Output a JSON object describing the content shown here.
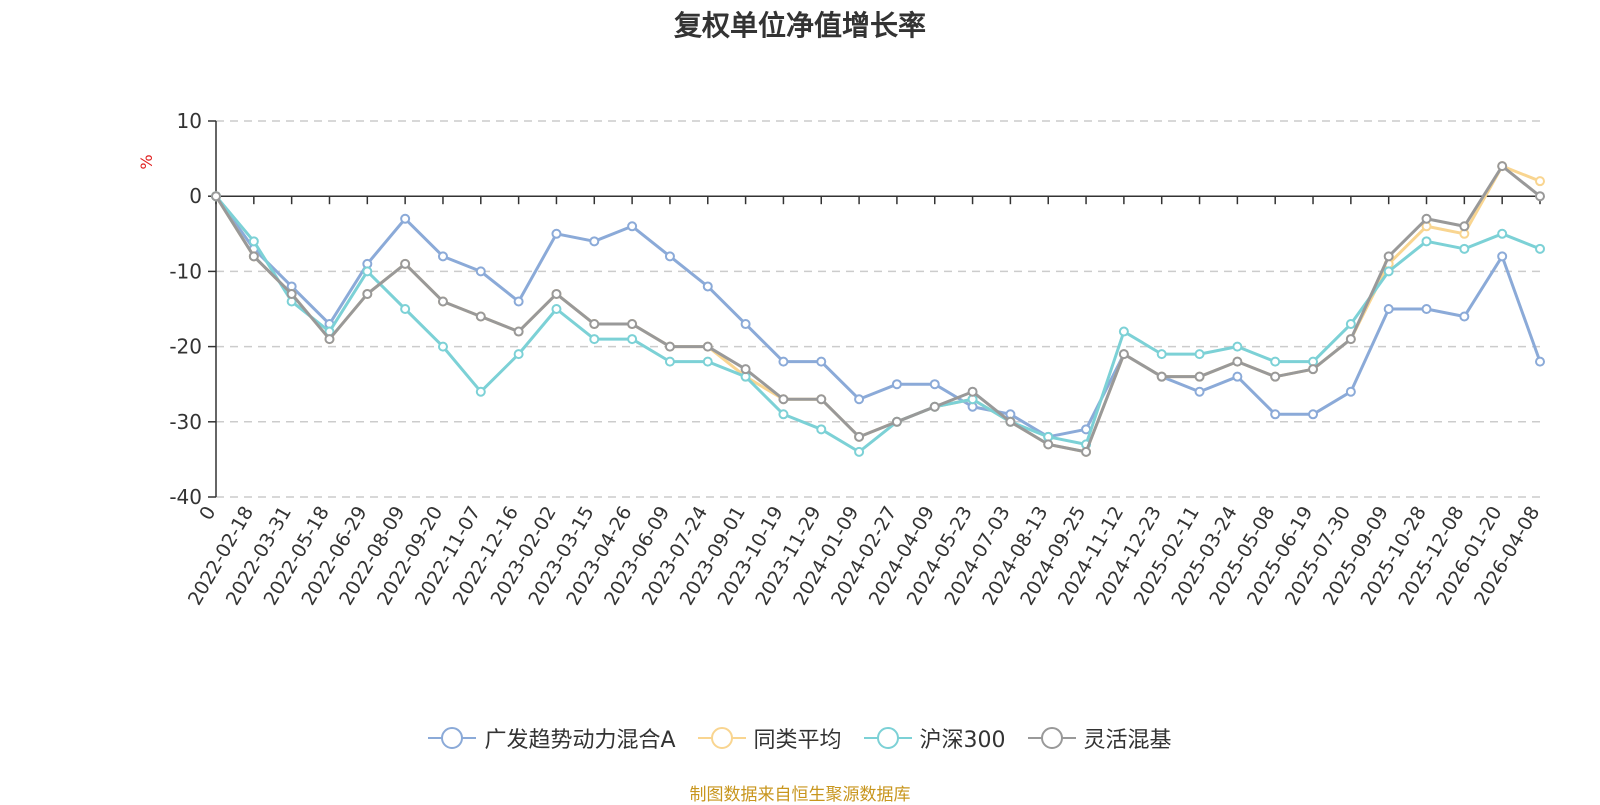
{
  "chart_data": {
    "type": "line",
    "title": "复权单位净值增长率",
    "ylabel": "%",
    "ylim": [
      -40,
      10
    ],
    "yticks": [
      10,
      0,
      -10,
      -20,
      -30,
      -40
    ],
    "grid": true,
    "legend_position": "bottom",
    "categories": [
      "0",
      "2022-02-18",
      "2022-03-31",
      "2022-05-18",
      "2022-06-29",
      "2022-08-09",
      "2022-09-20",
      "2022-11-07",
      "2022-12-16",
      "2023-02-02",
      "2023-03-15",
      "2023-04-26",
      "2023-06-09",
      "2023-07-24",
      "2023-09-01",
      "2023-10-19",
      "2023-11-29",
      "2024-01-09",
      "2024-02-27",
      "2024-04-09",
      "2024-05-23",
      "2024-07-03",
      "2024-08-13",
      "2024-09-25",
      "2024-11-12",
      "2024-12-23",
      "2025-02-11",
      "2025-03-24",
      "2025-05-08",
      "2025-06-19",
      "2025-07-30",
      "2025-09-09",
      "2025-10-28",
      "2025-12-08",
      "2026-01-20",
      "2026-04-08"
    ],
    "series": [
      {
        "name": "广发趋势动力混合A",
        "color": "#8baad8",
        "values": [
          0,
          -7,
          -12,
          -17,
          -9,
          -3,
          -8,
          -10,
          -14,
          -5,
          -6,
          -4,
          -8,
          -12,
          -17,
          -22,
          -22,
          -27,
          -25,
          -25,
          -28,
          -29,
          -32,
          -31,
          -21,
          -24,
          -26,
          -24,
          -29,
          -29,
          -26,
          -15,
          -15,
          -16,
          -8,
          -22
        ]
      },
      {
        "name": "同类平均",
        "color": "#f9d590",
        "values": [
          0,
          -8,
          -13,
          -19,
          -13,
          -9,
          -14,
          -16,
          -18,
          -13,
          -17,
          -17,
          -20,
          -20,
          -24,
          -27,
          -27,
          -32,
          -30,
          -28,
          -27,
          -30,
          -33,
          -34,
          -21,
          -24,
          -24,
          -22,
          -24,
          -23,
          -19,
          -9,
          -4,
          -5,
          4,
          2
        ]
      },
      {
        "name": "沪深300",
        "color": "#7cd1d6",
        "values": [
          0,
          -6,
          -14,
          -18,
          -10,
          -15,
          -20,
          -26,
          -21,
          -15,
          -19,
          -19,
          -22,
          -22,
          -24,
          -29,
          -31,
          -34,
          -30,
          -28,
          -27,
          -30,
          -32,
          -33,
          -18,
          -21,
          -21,
          -20,
          -22,
          -22,
          -17,
          -10,
          -6,
          -7,
          -5,
          -7
        ]
      },
      {
        "name": "灵活混基",
        "color": "#999999",
        "values": [
          0,
          -8,
          -13,
          -19,
          -13,
          -9,
          -14,
          -16,
          -18,
          -13,
          -17,
          -17,
          -20,
          -20,
          -23,
          -27,
          -27,
          -32,
          -30,
          -28,
          -26,
          -30,
          -33,
          -34,
          -21,
          -24,
          -24,
          -22,
          -24,
          -23,
          -19,
          -8,
          -3,
          -4,
          4,
          0
        ]
      }
    ]
  },
  "source_text": "制图数据来自恒生聚源数据库"
}
